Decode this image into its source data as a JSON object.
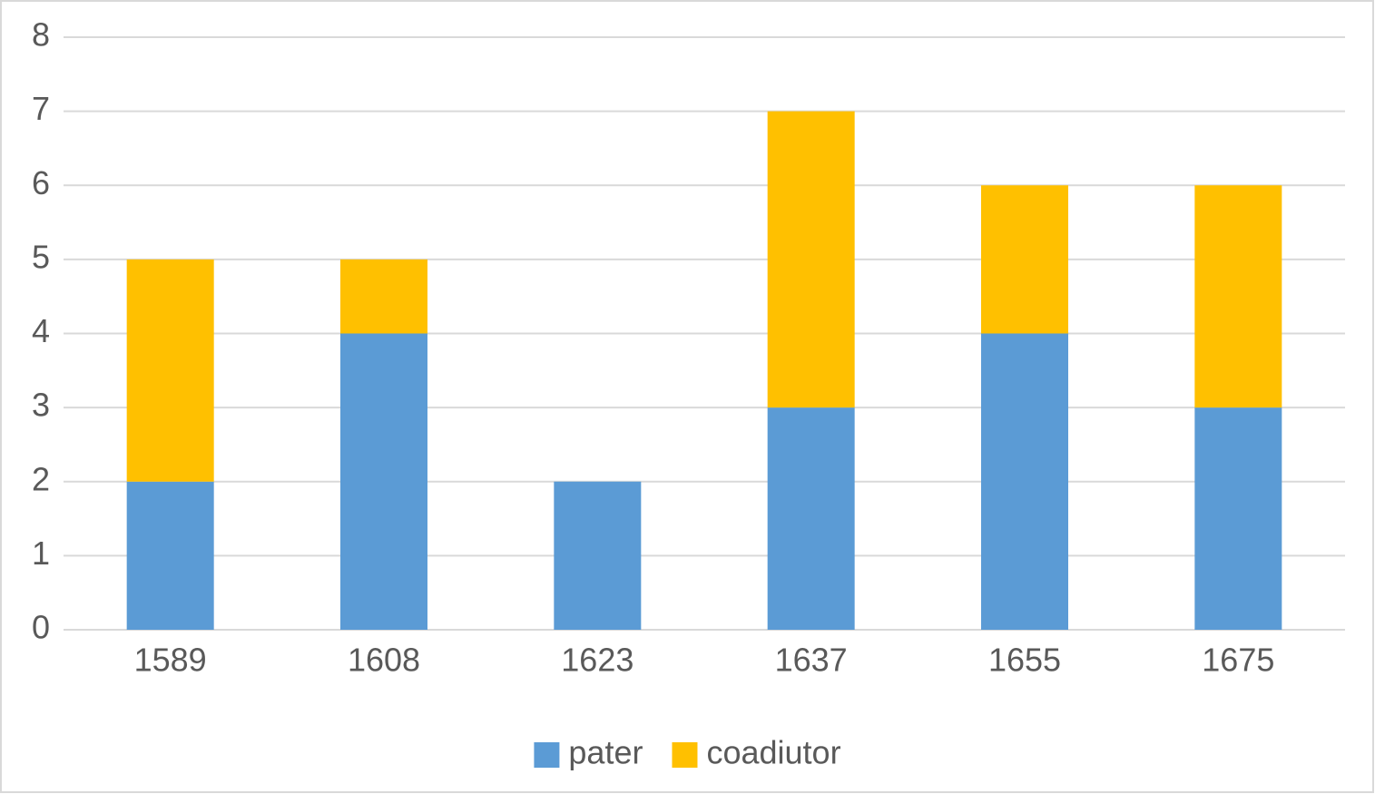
{
  "chart_data": {
    "type": "bar",
    "stacked": true,
    "categories": [
      "1589",
      "1608",
      "1623",
      "1637",
      "1655",
      "1675"
    ],
    "series": [
      {
        "name": "pater",
        "color": "#5b9bd5",
        "values": [
          2,
          4,
          2,
          3,
          4,
          3
        ]
      },
      {
        "name": "coadiutor",
        "color": "#ffc000",
        "values": [
          3,
          1,
          0,
          4,
          2,
          3
        ]
      }
    ],
    "ylim": [
      0,
      8
    ],
    "yticks": [
      0,
      1,
      2,
      3,
      4,
      5,
      6,
      7,
      8
    ],
    "grid": true,
    "legend": "bottom"
  }
}
